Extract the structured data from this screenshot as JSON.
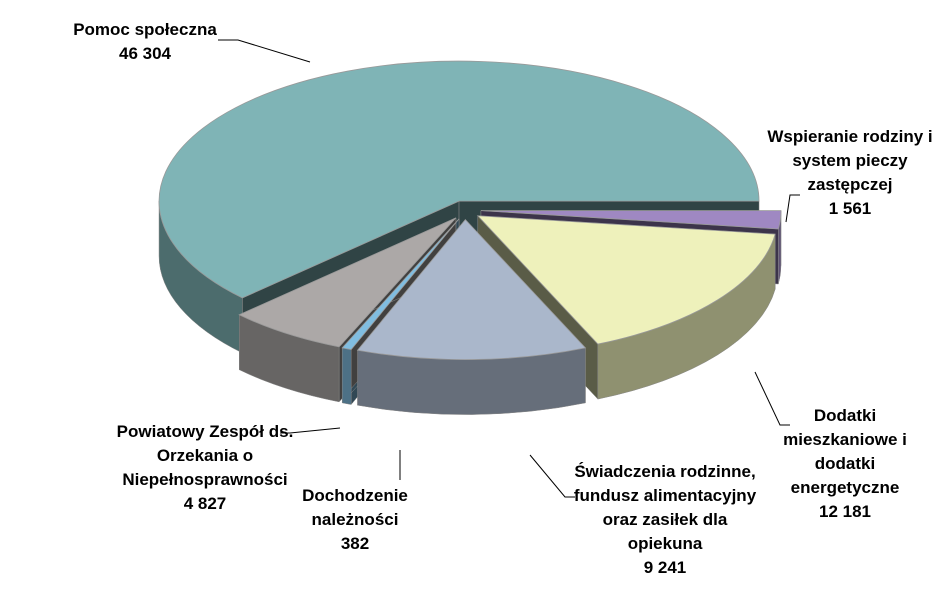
{
  "chart_data": {
    "type": "pie3d",
    "categories": [
      "Pomoc społeczna",
      "Wspieranie rodziny i system pieczy zastępczej",
      "Dodatki mieszkaniowe i dodatki energetyczne",
      "Świadczenia rodzinne, fundusz alimentacyjny oraz zasiłek dla opiekuna",
      "Dochodzenie należności",
      "Powiatowy Zespół ds. Orzekania o Niepełnosprawności"
    ],
    "values": [
      46304,
      1561,
      12181,
      9241,
      382,
      4827
    ],
    "value_labels": [
      "46 304",
      "1 561",
      "12 181",
      "9 241",
      "382",
      "4 827"
    ],
    "colors": [
      "#7fb4b6",
      "#9f88c2",
      "#eef1bb",
      "#aab7cb",
      "#80bde0",
      "#aca8a7"
    ]
  }
}
